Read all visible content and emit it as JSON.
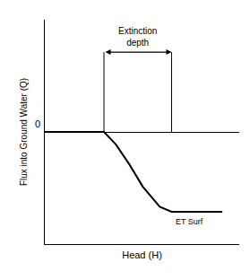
{
  "chart_data": {
    "type": "line",
    "xlabel": "Head (H)",
    "ylabel": "Flux into Ground Water (Q)",
    "x": [
      0.0,
      3.5,
      4.2,
      5.0,
      5.8,
      6.8,
      7.5,
      10.5
    ],
    "values": [
      0.0,
      0.0,
      -0.5,
      -1.3,
      -2.2,
      -3.0,
      -3.2,
      -3.2
    ],
    "color": "#000000",
    "xlim": [
      0.0,
      11.5
    ],
    "ylim": [
      -4.5,
      4.5
    ],
    "tick_labels": false,
    "grid": false,
    "annotations": [
      {
        "text": "Extinction\ndepth",
        "x": [
          3.5,
          7.5
        ],
        "y": [
          0.0,
          3.2
        ]
      },
      {
        "text": "0",
        "x": 0.0,
        "y": 0.0
      },
      {
        "text": "ET Surf",
        "x": 7.5,
        "y": -3.2
      }
    ]
  }
}
